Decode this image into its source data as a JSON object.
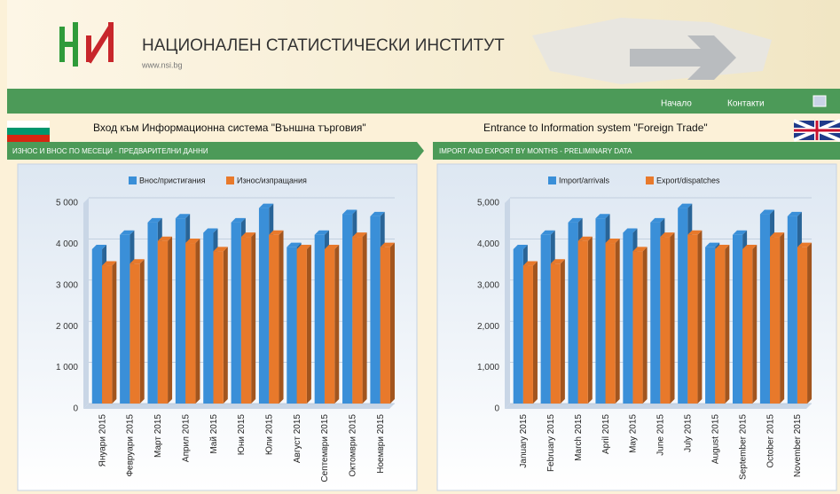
{
  "header": {
    "title": "НАЦИОНАЛЕН СТАТИСТИЧЕСКИ ИНСТИТУТ",
    "url": "www.nsi.bg"
  },
  "nav": [
    "Начало",
    "Контакти"
  ],
  "intro": {
    "bg": "Вход към Информационна система \"Външна търговия\"",
    "en": "Entrance to Information system \"Foreign Trade\""
  },
  "sections": [
    "ИЗНОС И ВНОС ПО МЕСЕЦИ - ПРЕДВАРИТЕЛНИ ДАННИ",
    "IMPORT AND EXPORT BY MONTHS - PRELIMINARY DATA"
  ],
  "chart_data": [
    {
      "type": "bar",
      "grid": true,
      "categories": [
        "Януари 2015",
        "Февруари 2015",
        "Март 2015",
        "Април 2015",
        "Май 2015",
        "Юни 2015",
        "Юли 2015",
        "Август 2015",
        "Септември 2015",
        "Октомври 2015",
        "Ноември 2015"
      ],
      "series": [
        {
          "name": "Внос/пристигания",
          "color": "#3a8fd8",
          "values": [
            3750,
            4100,
            4400,
            4500,
            4150,
            4400,
            4750,
            3800,
            4100,
            4600,
            4550
          ]
        },
        {
          "name": "Износ/изпращания",
          "color": "#e8792b",
          "values": [
            3350,
            3400,
            3950,
            3900,
            3700,
            4050,
            4100,
            3750,
            3750,
            4050,
            3800
          ]
        }
      ],
      "ylim": [
        0,
        5000
      ],
      "yticks": [
        0,
        {
          "value": 1000,
          "label": "1 000"
        },
        {
          "value": 2000,
          "label": "2 000"
        },
        {
          "value": 3000,
          "label": "3 000"
        },
        {
          "value": 4000,
          "label": "4 000"
        },
        {
          "value": 5000,
          "label": "5 000"
        }
      ]
    },
    {
      "type": "bar",
      "grid": true,
      "categories": [
        "January 2015",
        "February 2015",
        "March 2015",
        "April 2015",
        "May 2015",
        "June 2015",
        "July 2015",
        "August 2015",
        "September 2015",
        "October 2015",
        "November 2015"
      ],
      "series": [
        {
          "name": "Import/arrivals",
          "color": "#3a8fd8",
          "values": [
            3750,
            4100,
            4400,
            4500,
            4150,
            4400,
            4750,
            3800,
            4100,
            4600,
            4550
          ]
        },
        {
          "name": "Export/dispatches",
          "color": "#e8792b",
          "values": [
            3350,
            3400,
            3950,
            3900,
            3700,
            4050,
            4100,
            3750,
            3750,
            4050,
            3800
          ]
        }
      ],
      "ylim": [
        0,
        5000
      ],
      "yticks": [
        0,
        {
          "value": 1000,
          "label": "1,000"
        },
        {
          "value": 2000,
          "label": "2,000"
        },
        {
          "value": 3000,
          "label": "3,000"
        },
        {
          "value": 4000,
          "label": "4,000"
        },
        {
          "value": 5000,
          "label": "5,000"
        }
      ]
    }
  ]
}
